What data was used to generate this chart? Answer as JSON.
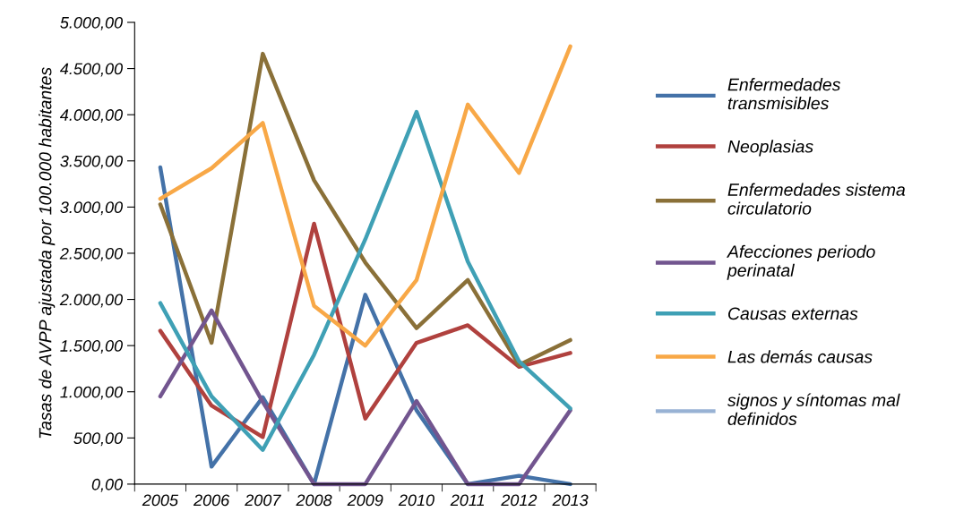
{
  "chart_data": {
    "type": "line",
    "ylabel": "Tasas de AVPP ajustada por 100.000 habitantes",
    "categories": [
      "2005",
      "2006",
      "2007",
      "2008",
      "2009",
      "2010",
      "2011",
      "2012",
      "2013"
    ],
    "series": [
      {
        "name": "Enfermedades transmisibles",
        "color": "#4472a8",
        "values": [
          3430,
          190,
          940,
          0,
          2050,
          800,
          0,
          90,
          0
        ]
      },
      {
        "name": "Neoplasias",
        "color": "#b0413e",
        "values": [
          1660,
          850,
          510,
          2820,
          710,
          1530,
          1720,
          1270,
          1420
        ]
      },
      {
        "name": "Enfermedades sistema circulatorio",
        "color": "#8a7038",
        "values": [
          3030,
          1530,
          4660,
          3290,
          2400,
          1690,
          2210,
          1290,
          1560
        ]
      },
      {
        "name": "Afecciones periodo perinatal",
        "color": "#72558f",
        "values": [
          950,
          1880,
          890,
          0,
          0,
          900,
          0,
          0,
          800
        ]
      },
      {
        "name": "Causas externas",
        "color": "#3fa0b5",
        "values": [
          1960,
          950,
          370,
          1400,
          2650,
          4030,
          2410,
          1330,
          820
        ]
      },
      {
        "name": "Las demás causas",
        "color": "#f8a847",
        "values": [
          3090,
          3420,
          3910,
          1930,
          1500,
          2210,
          4110,
          3370,
          4740
        ]
      },
      {
        "name": "signos y síntomas mal definidos",
        "color": "#98b2d4",
        "values": [
          null,
          null,
          null,
          null,
          null,
          null,
          null,
          null,
          null
        ]
      }
    ],
    "ylim": [
      0,
      5000
    ],
    "yticks": [
      {
        "value": 0,
        "label": "0,00"
      },
      {
        "value": 500,
        "label": "500,00"
      },
      {
        "value": 1000,
        "label": "1.000,00"
      },
      {
        "value": 1500,
        "label": "1.500,00"
      },
      {
        "value": 2000,
        "label": "2.000,00"
      },
      {
        "value": 2500,
        "label": "2.500,00"
      },
      {
        "value": 3000,
        "label": "3.000,00"
      },
      {
        "value": 3500,
        "label": "3.500,00"
      },
      {
        "value": 4000,
        "label": "4.000,00"
      },
      {
        "value": 4500,
        "label": "4.500,00"
      },
      {
        "value": 5000,
        "label": "5.000,00"
      }
    ],
    "grid": false,
    "legend": "right",
    "marker": "none",
    "line_style": "solid"
  }
}
